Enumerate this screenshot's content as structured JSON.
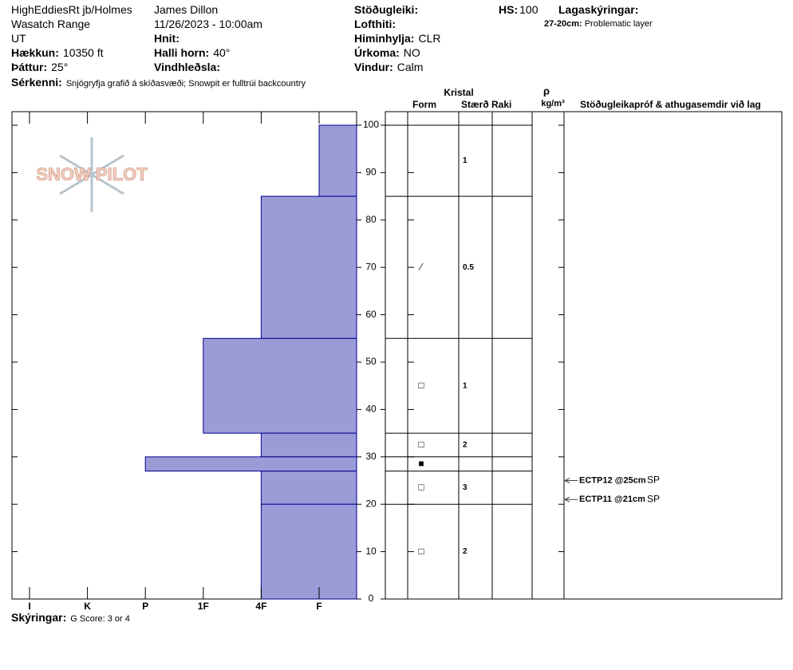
{
  "header": {
    "site": "HighEddiesRt jb/Holmes",
    "range": "Wasatch Range",
    "state": "UT",
    "elevation": {
      "label": "Hækkun:",
      "value": "10350 ft"
    },
    "aspect": {
      "label": "Þáttur:",
      "value": "25°"
    },
    "observer": "James Dillon",
    "datetime": "11/26/2023 - 10:00am",
    "coords": {
      "label": "Hnit:"
    },
    "slope": {
      "label": "Halli horn:",
      "value": "40°"
    },
    "wind_loading": {
      "label": "Vindhleðsla:"
    },
    "stability": {
      "label": "Stöðugleiki:"
    },
    "air_temp": {
      "label": "Lofthiti:"
    },
    "sky": {
      "label": "Himinhylja:",
      "value": "CLR"
    },
    "precip": {
      "label": "Úrkoma:",
      "value": "NO"
    },
    "wind": {
      "label": "Vindur:",
      "value": "Calm"
    },
    "hs": {
      "label": "HS:",
      "value": 100
    },
    "layer_notes": {
      "label": "Lagaskýringar:",
      "items": [
        {
          "range": "27-20cm:",
          "note": "Problematic layer"
        }
      ]
    },
    "specifics": {
      "label": "Sérkenni:",
      "value": "Snjógryfja grafið á skíðasvæði;  Snowpit er fulltrúi backcountry"
    }
  },
  "table_headers": {
    "crystal": "Kristal",
    "form": "Form",
    "size": "Stærð",
    "moisture": "Raki",
    "density_symbol": "ρ",
    "density_unit": "kg/m³",
    "tests": "Stöðugleikapróf & athugasemdir við lag"
  },
  "profile": {
    "logo": "SNOW PILOT",
    "ylim": [
      0,
      100
    ],
    "yticks": [
      0,
      10,
      20,
      30,
      40,
      50,
      60,
      70,
      80,
      90,
      100
    ],
    "hardness_ticks": [
      "I",
      "K",
      "P",
      "1F",
      "4F",
      "F"
    ],
    "color": "#9b9bd8",
    "layers": [
      {
        "top": 100,
        "bottom": 85,
        "hardness": "F",
        "size": "1"
      },
      {
        "top": 85,
        "bottom": 55,
        "hardness": "4F",
        "form": "⁄",
        "size": "0.5"
      },
      {
        "top": 55,
        "bottom": 35,
        "hardness": "1F",
        "form": "□",
        "size": "1"
      },
      {
        "top": 35,
        "bottom": 30,
        "hardness": "4F",
        "form": "□",
        "size": "2"
      },
      {
        "top": 30,
        "bottom": 27,
        "hardness": "P",
        "form": "■"
      },
      {
        "top": 27,
        "bottom": 20,
        "hardness": "4F",
        "form": "□",
        "size": "3"
      },
      {
        "top": 20,
        "bottom": 0,
        "hardness": "4F",
        "form": "□",
        "size": "2"
      }
    ],
    "tests": [
      {
        "label": "ECTP12 @25cm",
        "code": "SP",
        "depth": 25
      },
      {
        "label": "ECTP11 @21cm",
        "code": "SP",
        "depth": 21
      }
    ]
  },
  "footer": {
    "label": "Skýringar:",
    "value": "G Score: 3 or 4"
  }
}
